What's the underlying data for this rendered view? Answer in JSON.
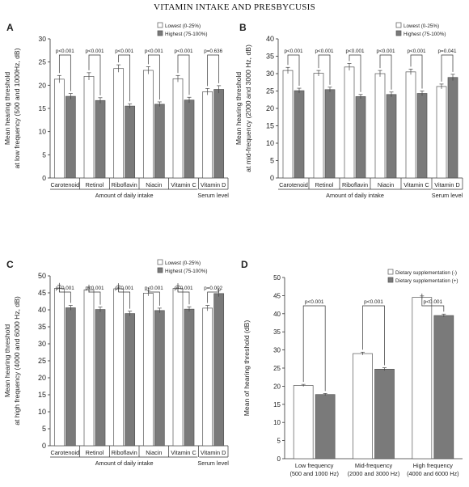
{
  "page_title": "VITAMIN INTAKE AND PRESBYCUSIS",
  "colors": {
    "lowest": "#ffffff",
    "highest": "#7a7a7a",
    "stroke": "#555555",
    "bracket": "#333333"
  },
  "chart_data": [
    {
      "panel_label": "A",
      "type": "bar",
      "ylabel_lines": [
        "Mean hearing threshold",
        "at low frequency (500 and 1000Hz, dB)"
      ],
      "ylim": [
        0,
        30
      ],
      "yticks": [
        0,
        5,
        10,
        15,
        20,
        25,
        30
      ],
      "categories": [
        "Carotenoid",
        "Retinol",
        "Riboflavin",
        "Niacin",
        "Vitamin C",
        "Vitamin D"
      ],
      "series": [
        {
          "name": "Lowest (0-25%)",
          "values": [
            21.3,
            21.9,
            23.6,
            23.2,
            21.4,
            18.6
          ],
          "errors": [
            0.8,
            0.8,
            0.8,
            0.8,
            0.7,
            0.7
          ]
        },
        {
          "name": "Highest (75-100%)",
          "values": [
            17.6,
            16.7,
            15.5,
            15.9,
            16.8,
            19.1
          ],
          "errors": [
            0.6,
            0.6,
            0.5,
            0.5,
            0.6,
            0.8
          ]
        }
      ],
      "pvalues": [
        "p<0.001",
        "p<0.001",
        "p<0.001",
        "p<0.001",
        "p<0.001",
        "p=0.636"
      ],
      "group_labels": [
        "Amount of daily intake",
        "Serum level"
      ],
      "legend_position": "top-right"
    },
    {
      "panel_label": "B",
      "type": "bar",
      "ylabel_lines": [
        "Mean hearing threshold",
        "at mid-frequency (2000 and 3000 Hz, dB)"
      ],
      "ylim": [
        0,
        40
      ],
      "yticks": [
        0,
        5,
        10,
        15,
        20,
        25,
        30,
        35,
        40
      ],
      "categories": [
        "Carotenoid",
        "Retinol",
        "Riboflavin",
        "Niacin",
        "Vitamin C",
        "Vitamin D"
      ],
      "series": [
        {
          "name": "Lowest (0-25%)",
          "values": [
            30.9,
            30.1,
            31.9,
            30.0,
            30.5,
            26.3
          ],
          "errors": [
            0.9,
            0.8,
            1.0,
            0.9,
            0.8,
            0.7
          ]
        },
        {
          "name": "Highest (75-100%)",
          "values": [
            25.1,
            25.4,
            23.4,
            24.0,
            24.3,
            28.9
          ],
          "errors": [
            0.7,
            0.7,
            0.6,
            0.7,
            0.7,
            0.9
          ]
        }
      ],
      "pvalues": [
        "p<0.001",
        "p<0.001",
        "p<0.001",
        "p<0.001",
        "p<0.001",
        "p=0.041"
      ],
      "group_labels": [
        "Amount of daily intake",
        "Serum level"
      ],
      "legend_position": "top-right"
    },
    {
      "panel_label": "C",
      "type": "bar",
      "ylabel_lines": [
        "Mean hearing threshold",
        "at high frequency (4000 and 6000 Hz, dB)"
      ],
      "ylim": [
        0,
        50
      ],
      "yticks": [
        0,
        5,
        10,
        15,
        20,
        25,
        30,
        35,
        40,
        45,
        50
      ],
      "categories": [
        "Carotenoid",
        "Retinol",
        "Riboflavin",
        "Niacin",
        "Vitamin C",
        "Vitamin D"
      ],
      "series": [
        {
          "name": "Lowest (0-25%)",
          "values": [
            46.3,
            45.9,
            46.2,
            44.9,
            46.3,
            40.5
          ],
          "errors": [
            0.9,
            0.8,
            0.9,
            0.8,
            0.8,
            0.8
          ]
        },
        {
          "name": "Highest (75-100%)",
          "values": [
            40.6,
            40.1,
            38.9,
            39.8,
            40.2,
            44.8
          ],
          "errors": [
            0.7,
            0.7,
            0.7,
            0.7,
            0.7,
            0.9
          ]
        }
      ],
      "pvalues": [
        "p<0.001",
        "p<0.001",
        "p<0.001",
        "p<0.001",
        "p<0.001",
        "p=0.002"
      ],
      "group_labels": [
        "Amount of daily intake",
        "Serum level"
      ],
      "legend_position": "top-right"
    },
    {
      "panel_label": "D",
      "type": "bar",
      "ylabel_lines": [
        "Mean of hearing threshold (dB)"
      ],
      "ylim": [
        0,
        50
      ],
      "yticks": [
        0,
        5,
        10,
        15,
        20,
        25,
        30,
        35,
        40,
        45,
        50
      ],
      "categories": [
        "Low frequency|(500 and 1000 Hz)",
        "Mid-frequency|(2000 and 3000 Hz)",
        "High frequency|(4000 and 6000 Hz)"
      ],
      "series": [
        {
          "name": "Dietary supplementation (-)",
          "values": [
            20.2,
            29.0,
            44.5
          ],
          "errors": [
            0.3,
            0.4,
            0.4
          ]
        },
        {
          "name": "Dietary supplementation (+)",
          "values": [
            17.7,
            24.7,
            39.5
          ],
          "errors": [
            0.3,
            0.4,
            0.4
          ]
        }
      ],
      "pvalues": [
        "p<0.001",
        "p<0.001",
        "p<0.001"
      ],
      "legend_position": "top-right"
    }
  ]
}
